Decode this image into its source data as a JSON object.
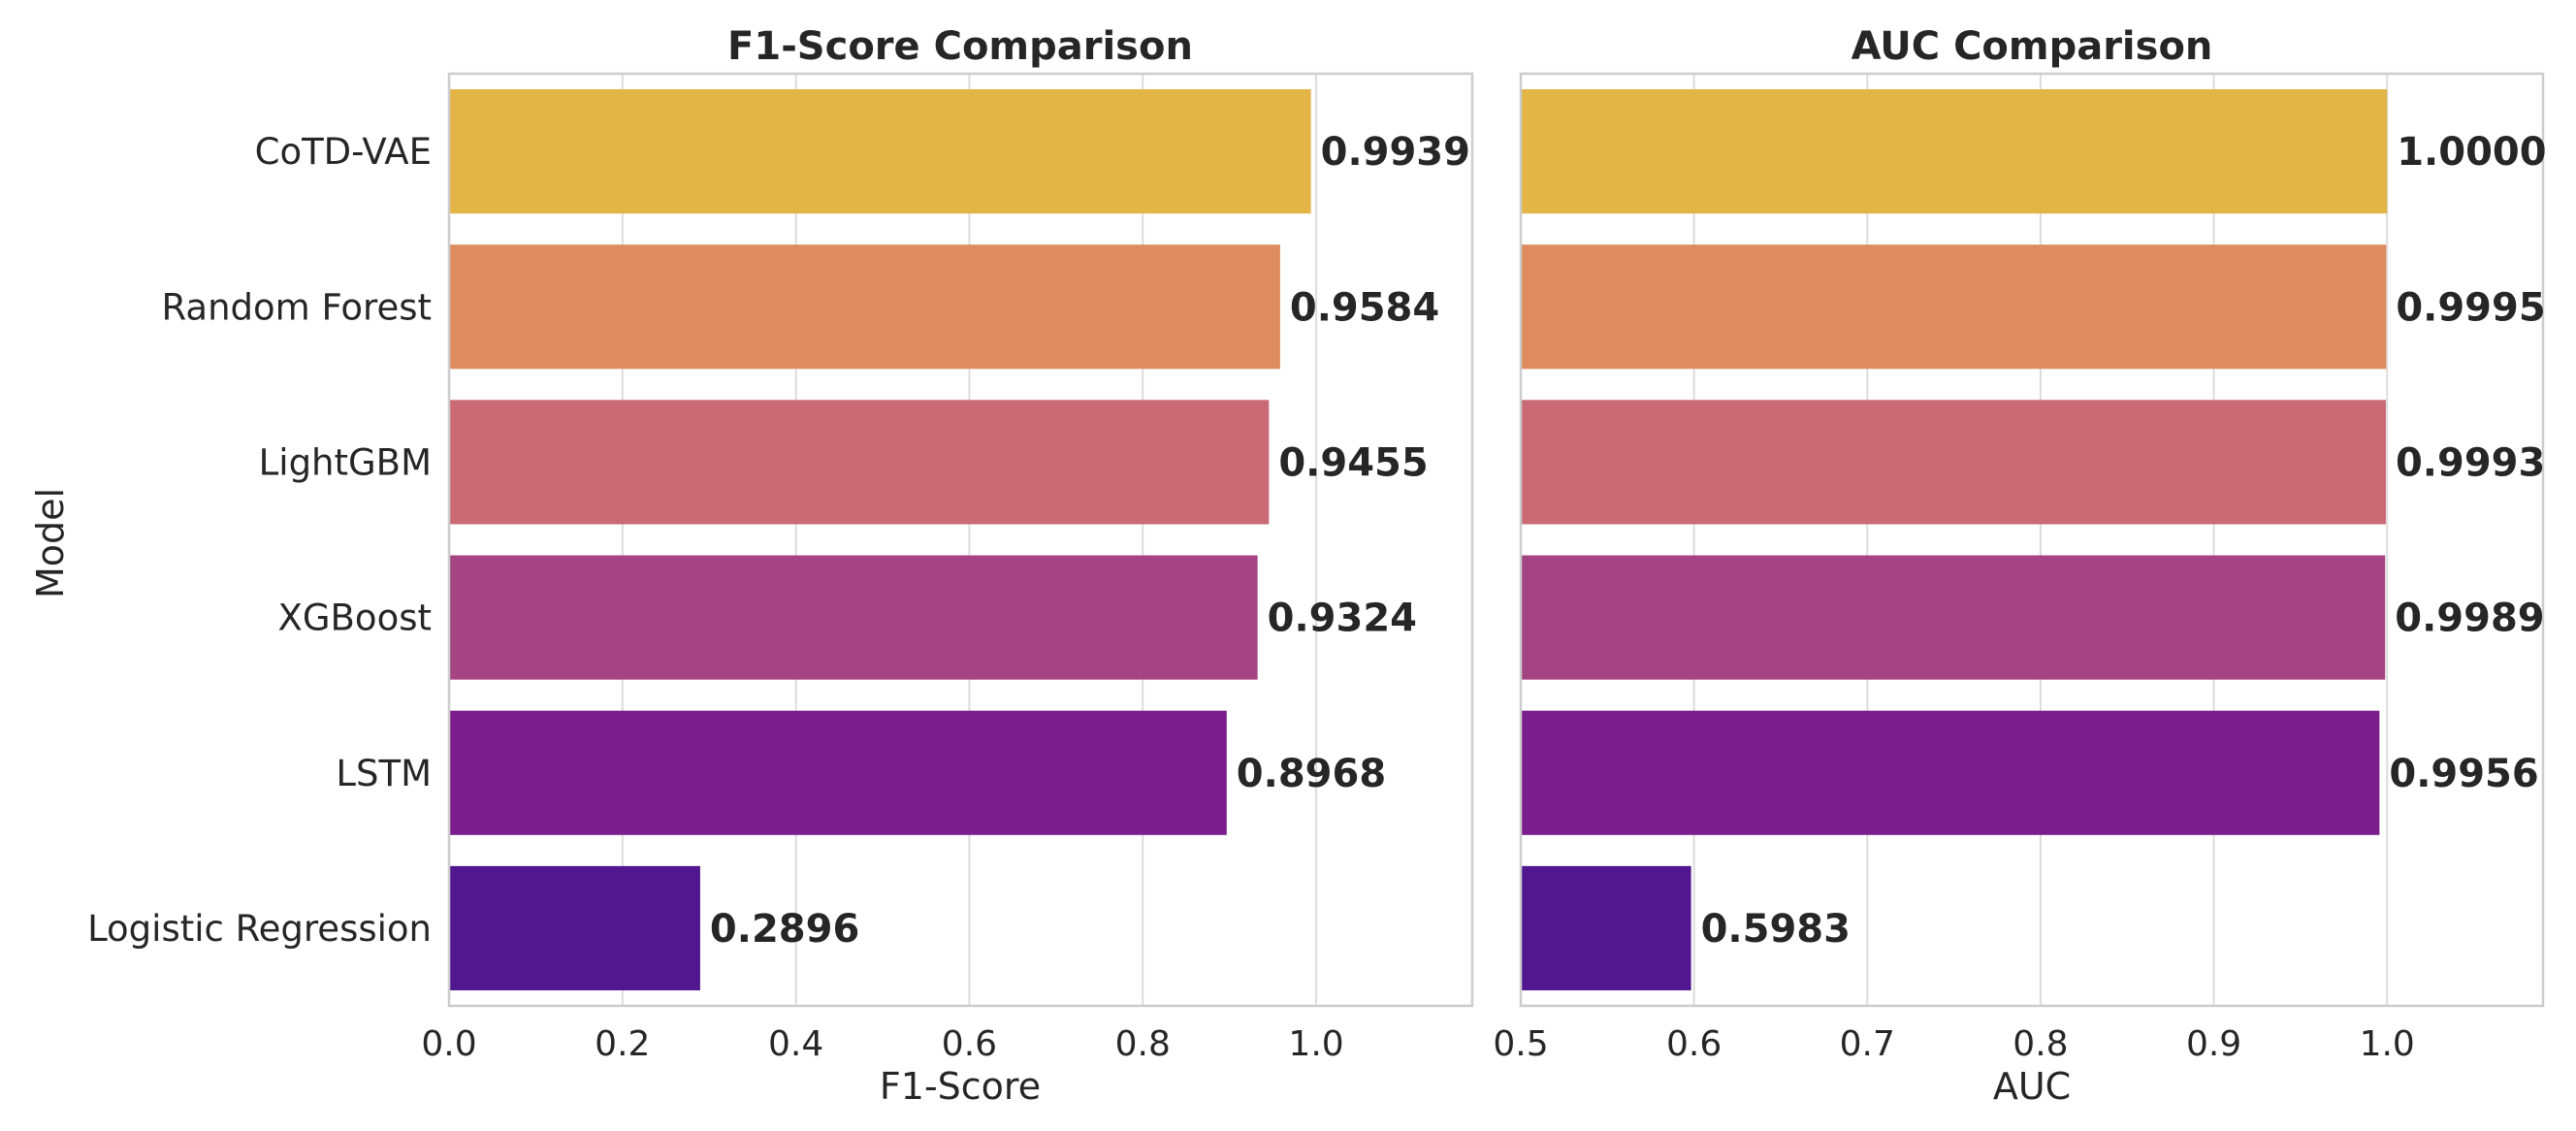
{
  "figure_label": "Model comparison figure",
  "chart_data": [
    {
      "type": "bar",
      "orientation": "horizontal",
      "title": "F1-Score Comparison",
      "xlabel": "F1-Score",
      "ylabel": "Model",
      "grid": true,
      "xlim": [
        0.0,
        1.18
      ],
      "xticks": [
        "0.0",
        "0.2",
        "0.4",
        "0.6",
        "0.8",
        "1.0"
      ],
      "categories": [
        "CoTD-VAE",
        "Random Forest",
        "LightGBM",
        "XGBoost",
        "LSTM",
        "Logistic Regression"
      ],
      "values": [
        0.9939,
        0.9584,
        0.9455,
        0.9324,
        0.8968,
        0.2896
      ],
      "value_labels": [
        "0.9939",
        "0.9584",
        "0.9455",
        "0.9324",
        "0.8968",
        "0.2896"
      ],
      "colors": [
        "#e3b446",
        "#de8c5f",
        "#c96a74",
        "#a54482",
        "#7c1d8d",
        "#51178f"
      ]
    },
    {
      "type": "bar",
      "orientation": "horizontal",
      "title": "AUC Comparison",
      "xlabel": "AUC",
      "ylabel": "",
      "grid": true,
      "xlim": [
        0.5,
        1.09
      ],
      "xticks": [
        "0.5",
        "0.6",
        "0.7",
        "0.8",
        "0.9",
        "1.0"
      ],
      "categories": [
        "CoTD-VAE",
        "Random Forest",
        "LightGBM",
        "XGBoost",
        "LSTM",
        "Logistic Regression"
      ],
      "values": [
        1.0,
        0.9995,
        0.9993,
        0.9989,
        0.9956,
        0.5983
      ],
      "value_labels": [
        "1.0000",
        "0.9995",
        "0.9993",
        "0.9989",
        "0.9956",
        "0.5983"
      ],
      "colors": [
        "#e3b446",
        "#de8c5f",
        "#c96a74",
        "#a54482",
        "#7c1d8d",
        "#51178f"
      ]
    }
  ]
}
